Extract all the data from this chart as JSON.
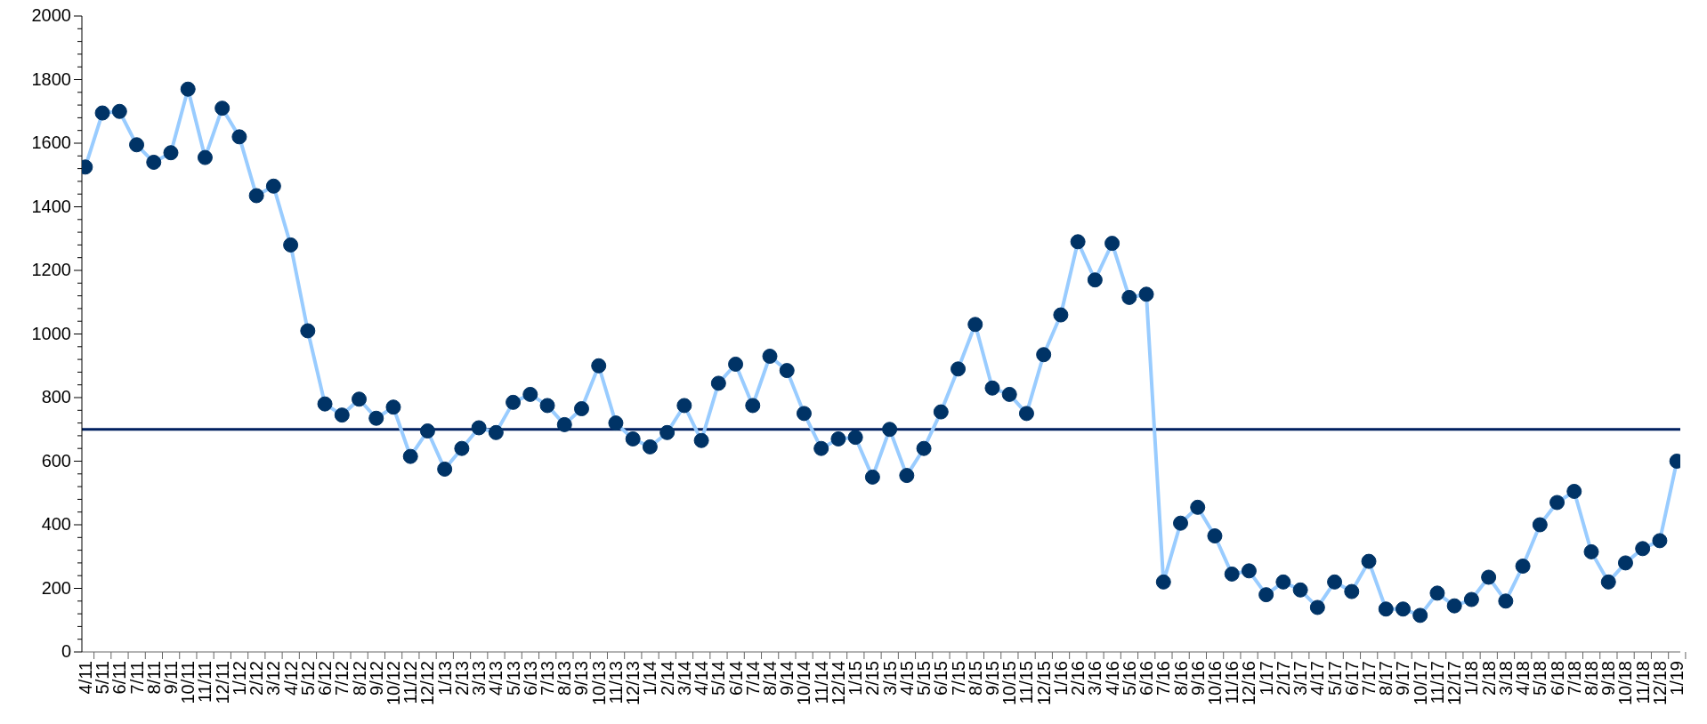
{
  "chart_data": {
    "type": "line",
    "categories": [
      "4/11",
      "5/11",
      "6/11",
      "7/11",
      "8/11",
      "9/11",
      "10/11",
      "11/11",
      "12/11",
      "1/12",
      "2/12",
      "3/12",
      "4/12",
      "5/12",
      "6/12",
      "7/12",
      "8/12",
      "9/12",
      "10/12",
      "11/12",
      "12/12",
      "1/13",
      "2/13",
      "3/13",
      "4/13",
      "5/13",
      "6/13",
      "7/13",
      "8/13",
      "9/13",
      "10/13",
      "11/13",
      "12/13",
      "1/14",
      "2/14",
      "3/14",
      "4/14",
      "5/14",
      "6/14",
      "7/14",
      "8/14",
      "9/14",
      "10/14",
      "11/14",
      "12/14",
      "1/15",
      "2/15",
      "3/15",
      "4/15",
      "5/15",
      "6/15",
      "7/15",
      "8/15",
      "9/15",
      "10/15",
      "11/15",
      "12/15",
      "1/16",
      "2/16",
      "3/16",
      "4/16",
      "5/16",
      "6/16",
      "7/16",
      "8/16",
      "9/16",
      "10/16",
      "11/16",
      "12/16",
      "1/17",
      "2/17",
      "3/17",
      "4/17",
      "5/17",
      "6/17",
      "7/17",
      "8/17",
      "9/17",
      "10/17",
      "11/17",
      "12/17",
      "1/18",
      "2/18",
      "3/18",
      "4/18",
      "5/18",
      "6/18",
      "7/18",
      "8/18",
      "9/18",
      "10/18",
      "11/18",
      "12/18",
      "1/19"
    ],
    "series": [
      {
        "color": "#99ccff",
        "values": [
          1525,
          1695,
          1700,
          1595,
          1540,
          1570,
          1770,
          1555,
          1710,
          1620,
          1435,
          1465,
          1280,
          1010,
          780,
          745,
          795,
          735,
          770,
          615,
          695,
          575,
          640,
          705,
          690,
          785,
          810,
          775,
          715,
          765,
          900,
          720,
          670,
          645,
          690,
          775,
          665,
          845,
          905,
          775,
          930,
          885,
          750,
          640,
          670,
          675,
          550,
          700,
          555,
          640,
          755,
          890,
          1030,
          830,
          810,
          750,
          935,
          1060,
          1290,
          1170,
          1285,
          1115,
          1125,
          220,
          405,
          455,
          365,
          245,
          255,
          180,
          220,
          195,
          140,
          220,
          190,
          285,
          135,
          135,
          115,
          185,
          145,
          165,
          235,
          160,
          270,
          400,
          470,
          505,
          315,
          220,
          280,
          325,
          350,
          600
        ]
      }
    ],
    "ylim": [
      0,
      2000
    ],
    "yticks": [
      0,
      {
        "value": 40,
        "label": null
      },
      {
        "value": 80,
        "label": null
      },
      {
        "value": 120,
        "label": null
      },
      {
        "value": 160,
        "label": null
      },
      200,
      {
        "value": 240,
        "label": null
      },
      {
        "value": 280,
        "label": null
      },
      {
        "value": 320,
        "label": null
      },
      {
        "value": 360,
        "label": null
      },
      400,
      {
        "value": 440,
        "label": null
      },
      {
        "value": 480,
        "label": null
      },
      {
        "value": 520,
        "label": null
      },
      {
        "value": 560,
        "label": null
      },
      600,
      {
        "value": 640,
        "label": null
      },
      {
        "value": 680,
        "label": null
      },
      {
        "value": 720,
        "label": null
      },
      {
        "value": 760,
        "label": null
      },
      800,
      {
        "value": 840,
        "label": null
      },
      {
        "value": 880,
        "label": null
      },
      {
        "value": 920,
        "label": null
      },
      {
        "value": 960,
        "label": null
      },
      1000,
      {
        "value": 1040,
        "label": null
      },
      {
        "value": 1080,
        "label": null
      },
      {
        "value": 1120,
        "label": null
      },
      {
        "value": 1160,
        "label": null
      },
      1200,
      {
        "value": 1240,
        "label": null
      },
      {
        "value": 1280,
        "label": null
      },
      {
        "value": 1320,
        "label": null
      },
      {
        "value": 1360,
        "label": null
      },
      1400,
      {
        "value": 1440,
        "label": null
      },
      {
        "value": 1480,
        "label": null
      },
      {
        "value": 1520,
        "label": null
      },
      {
        "value": 1560,
        "label": null
      },
      1600,
      {
        "value": 1640,
        "label": null
      },
      {
        "value": 1680,
        "label": null
      },
      {
        "value": 1720,
        "label": null
      },
      {
        "value": 1760,
        "label": null
      },
      1800,
      {
        "value": 1840,
        "label": null
      },
      {
        "value": 1880,
        "label": null
      },
      {
        "value": 1920,
        "label": null
      },
      {
        "value": 1960,
        "label": null
      },
      2000
    ],
    "ref_lines": [
      {
        "axis": "y",
        "value": 700,
        "color": "#002060"
      }
    ],
    "marker": "circle",
    "line_style": "solid",
    "grid": false
  }
}
